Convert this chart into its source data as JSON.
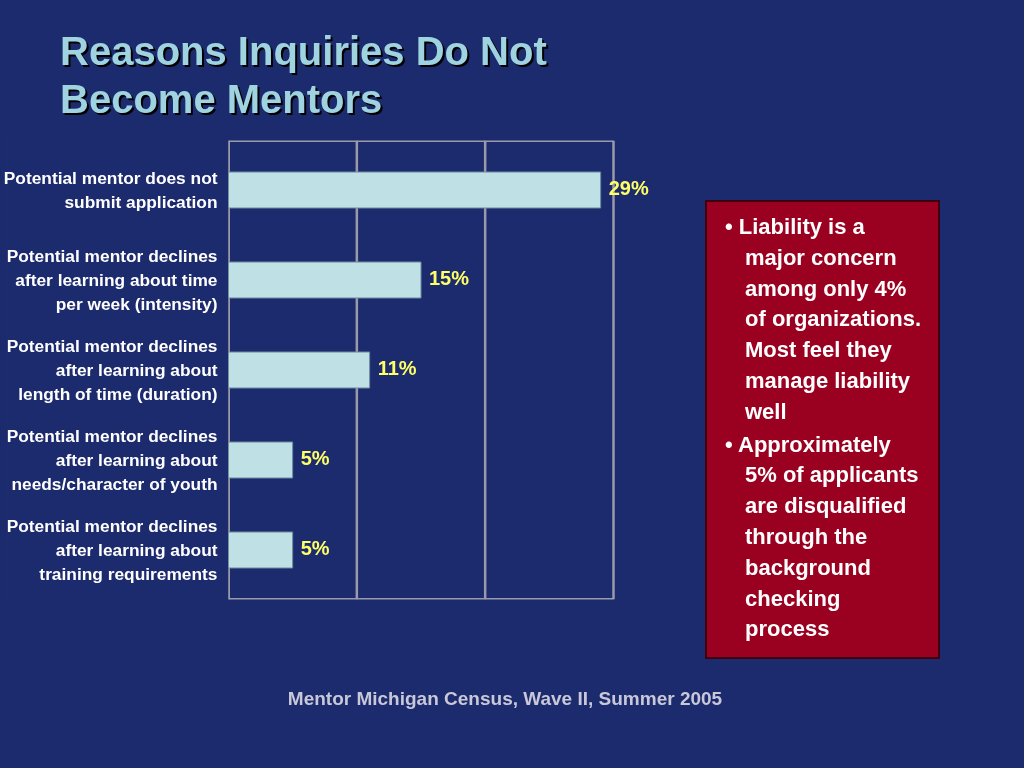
{
  "chart_data": {
    "type": "bar",
    "orientation": "horizontal",
    "title": "Reasons Inquiries Do Not Become Mentors",
    "categories": [
      "Potential mentor does not submit application",
      "Potential mentor declines after learning about time per week (intensity)",
      "Potential mentor declines after learning about length of time (duration)",
      "Potential mentor declines after learning about needs/character of youth",
      "Potential mentor declines after learning about training requirements"
    ],
    "values": [
      29,
      15,
      11,
      5,
      5
    ],
    "value_labels": [
      "29%",
      "15%",
      "11%",
      "5%",
      "5%"
    ],
    "color": "#bfe1e6",
    "xlim": [
      0,
      30
    ],
    "xticks": [
      {
        "value": 0,
        "label": null
      },
      {
        "value": 10,
        "label": null
      },
      {
        "value": 20,
        "label": null
      },
      {
        "value": 30,
        "label": null
      }
    ],
    "tick_labels": "y",
    "grid": "x",
    "annotations": [
      "• Liability is a major concern among only 4% of organizations. Most feel they manage liability well",
      "• Approximately 5% of applicants are disqualified through the background checking process",
      "Mentor Michigan Census, Wave II, Summer 2005"
    ]
  }
}
